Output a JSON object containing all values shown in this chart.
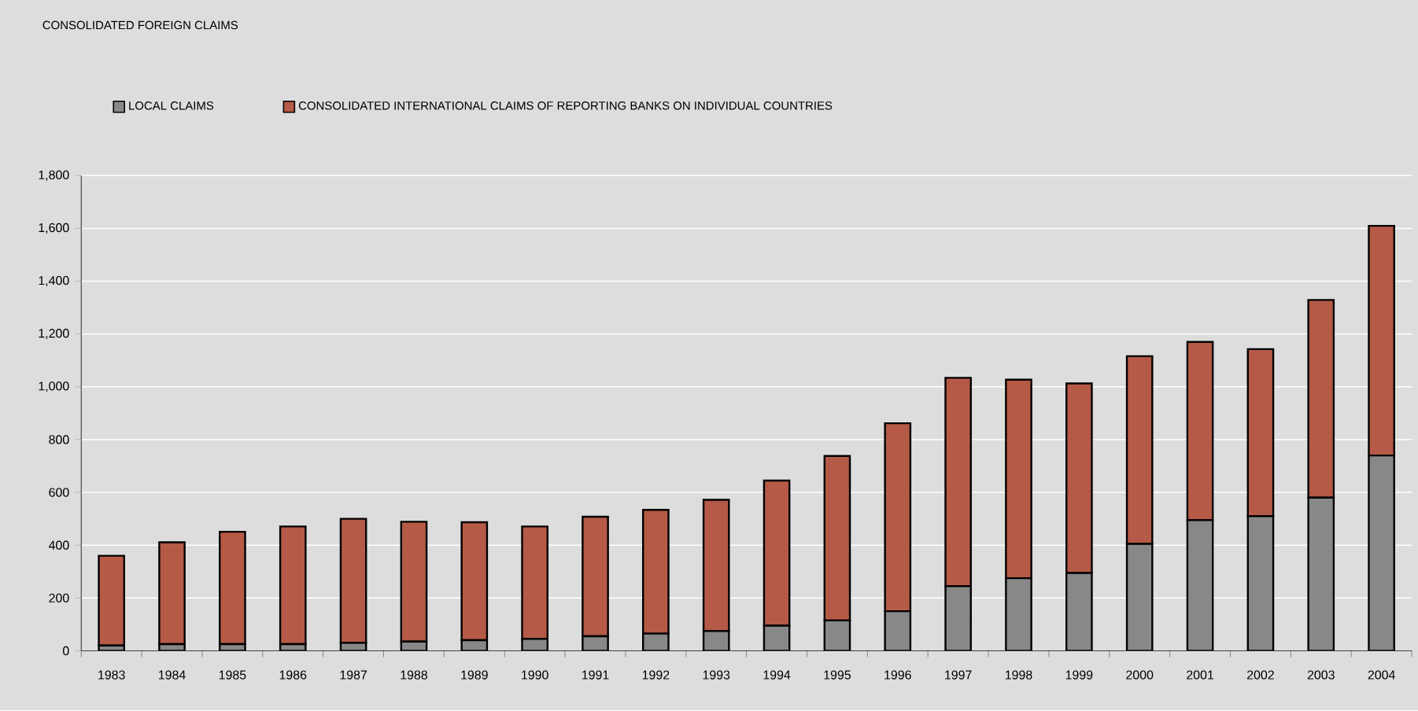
{
  "chart_data": {
    "type": "bar",
    "stacked": true,
    "title": "CONSOLIDATED FOREIGN CLAIMS",
    "categories": [
      "1983",
      "1984",
      "1985",
      "1986",
      "1987",
      "1988",
      "1989",
      "1990",
      "1991",
      "1992",
      "1993",
      "1994",
      "1995",
      "1996",
      "1997",
      "1998",
      "1999",
      "2000",
      "2001",
      "2002",
      "2003",
      "2004"
    ],
    "series": [
      {
        "name": "LOCAL CLAIMS",
        "color": "#888888",
        "values": [
          20,
          25,
          25,
          25,
          30,
          35,
          40,
          45,
          55,
          65,
          75,
          95,
          115,
          150,
          245,
          275,
          295,
          405,
          495,
          510,
          580,
          740
        ]
      },
      {
        "name": "CONSOLIDATED INTERNATIONAL CLAIMS OF REPORTING BANKS ON INDIVIDUAL COUNTRIES",
        "color": "#b55a47",
        "values": [
          340,
          386,
          426,
          446,
          470,
          454,
          447,
          426,
          453,
          469,
          497,
          550,
          623,
          712,
          789,
          752,
          718,
          711,
          675,
          633,
          749,
          870
        ]
      }
    ],
    "ylim": [
      0,
      1800
    ],
    "yticks": [
      0,
      200,
      400,
      600,
      800,
      {
        "value": 1000,
        "label": "1,000"
      },
      {
        "value": 1200,
        "label": "1,200"
      },
      {
        "value": 1400,
        "label": "1,400"
      },
      {
        "value": 1600,
        "label": "1,600"
      },
      {
        "value": 1800,
        "label": "1,800"
      }
    ],
    "grid": "y",
    "legend": "top left"
  }
}
